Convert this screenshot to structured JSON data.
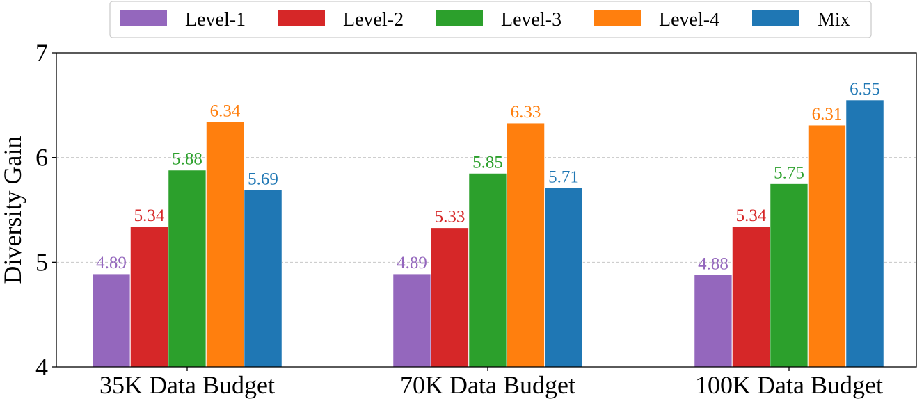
{
  "chart_data": {
    "type": "bar",
    "title": "",
    "xlabel": "",
    "ylabel": "Diversity Gain",
    "ylim": [
      4,
      7
    ],
    "yticks": [
      "4",
      "5",
      "6",
      "7"
    ],
    "grid": "horizontal dashed at 5 and 6",
    "legend_position": "top-center",
    "categories": [
      "35K Data Budget",
      "70K Data Budget",
      "100K Data Budget"
    ],
    "series": [
      {
        "name": "Level-1",
        "color": "#9467bd",
        "values": [
          4.89,
          4.89,
          4.88
        ],
        "labels": [
          "4.89",
          "4.89",
          "4.88"
        ]
      },
      {
        "name": "Level-2",
        "color": "#d62728",
        "values": [
          5.34,
          5.33,
          5.34
        ],
        "labels": [
          "5.34",
          "5.33",
          "5.34"
        ]
      },
      {
        "name": "Level-3",
        "color": "#2ca02c",
        "values": [
          5.88,
          5.85,
          5.75
        ],
        "labels": [
          "5.88",
          "5.85",
          "5.75"
        ]
      },
      {
        "name": "Level-4",
        "color": "#ff7f0e",
        "values": [
          6.34,
          6.33,
          6.31
        ],
        "labels": [
          "6.34",
          "6.33",
          "6.31"
        ]
      },
      {
        "name": "Mix",
        "color": "#1f77b4",
        "values": [
          5.69,
          5.71,
          6.55
        ],
        "labels": [
          "5.69",
          "5.71",
          "6.55"
        ]
      }
    ]
  }
}
